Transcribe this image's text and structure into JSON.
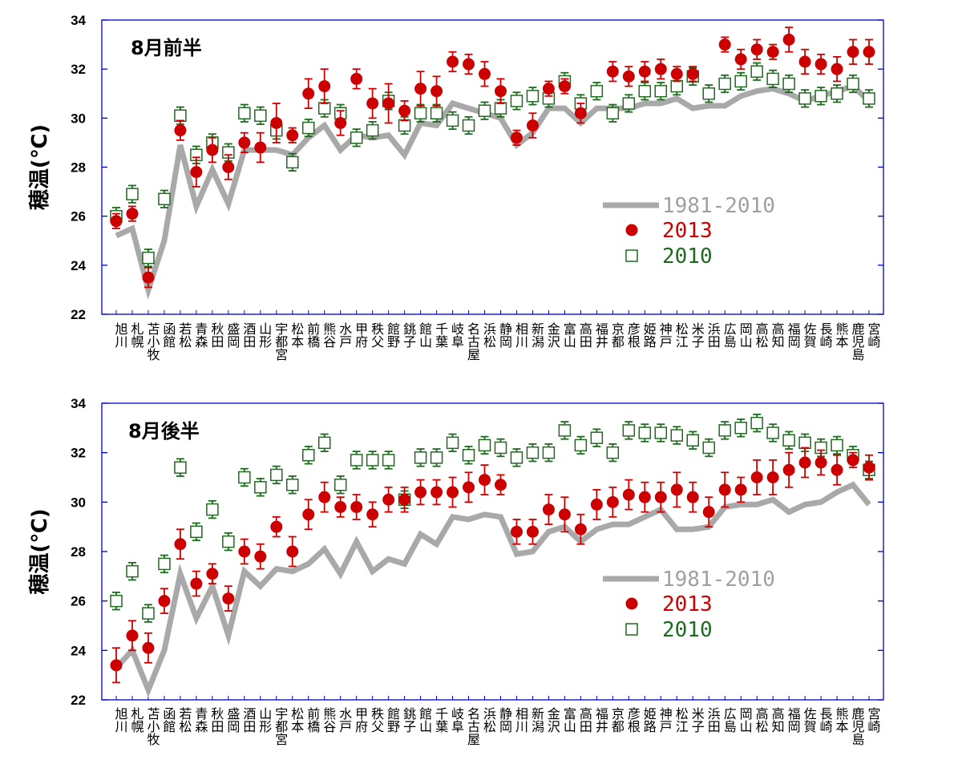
{
  "chart_data": [
    {
      "type": "line",
      "title": "8月前半",
      "ylabel": "穂温(℃)",
      "ylim": [
        22,
        34
      ],
      "yticks": [
        22,
        24,
        26,
        28,
        30,
        32,
        34
      ],
      "grid": false,
      "legend": "right-middle",
      "categories": [
        "旭川",
        "札幌",
        "苫小牧",
        "函館",
        "若松",
        "青森",
        "秋田",
        "盛岡",
        "酒田",
        "山形",
        "宇都宮",
        "松本",
        "前橋",
        "熊谷",
        "水戸",
        "甲府",
        "秩父",
        "館野",
        "銚子",
        "館山",
        "千葉",
        "岐阜",
        "名古屋",
        "浜松",
        "静岡",
        "相川",
        "新潟",
        "金沢",
        "富山",
        "高田",
        "福井",
        "京都",
        "彦根",
        "姫路",
        "神戸",
        "松江",
        "米子",
        "浜田",
        "広島",
        "岡山",
        "高松",
        "高知",
        "福岡",
        "佐賀",
        "長崎",
        "熊本",
        "鹿児島",
        "宮崎"
      ],
      "series": [
        {
          "name": "1981-2010",
          "color": "#a9a9a9",
          "style": "thick-line",
          "values": [
            25.2,
            25.5,
            23.0,
            25.0,
            28.9,
            26.4,
            27.9,
            26.5,
            28.7,
            28.7,
            28.7,
            28.5,
            29.2,
            29.7,
            28.7,
            29.3,
            29.2,
            29.3,
            28.5,
            29.8,
            29.7,
            30.6,
            30.4,
            30.2,
            30.0,
            28.9,
            29.4,
            30.4,
            30.4,
            29.8,
            30.4,
            30.4,
            30.4,
            30.6,
            30.6,
            30.8,
            30.4,
            30.5,
            30.5,
            30.9,
            31.1,
            31.2,
            31.0,
            30.7,
            30.9,
            31.1,
            31.3,
            30.7
          ]
        },
        {
          "name": "2013",
          "color": "#cc0000",
          "marker": "filled-circle",
          "values": [
            25.8,
            26.1,
            23.5,
            null,
            29.5,
            27.8,
            28.7,
            28.0,
            29.0,
            28.8,
            29.8,
            29.3,
            31.0,
            31.3,
            29.8,
            31.6,
            30.6,
            30.6,
            30.3,
            31.2,
            31.1,
            32.3,
            32.2,
            31.8,
            31.1,
            29.2,
            29.7,
            31.2,
            31.3,
            30.2,
            null,
            31.9,
            31.7,
            31.9,
            32.0,
            31.8,
            31.8,
            null,
            33.0,
            32.4,
            32.8,
            32.7,
            33.2,
            32.3,
            32.2,
            32.0,
            32.7,
            32.7
          ],
          "errors": [
            0.3,
            0.3,
            0.4,
            null,
            0.4,
            0.6,
            0.5,
            0.5,
            0.4,
            0.6,
            0.8,
            0.3,
            0.6,
            0.7,
            0.5,
            0.4,
            0.6,
            0.8,
            0.4,
            0.7,
            0.6,
            0.4,
            0.4,
            0.5,
            0.5,
            0.3,
            0.5,
            0.3,
            0.3,
            0.4,
            null,
            0.4,
            0.4,
            0.4,
            0.4,
            0.3,
            0.3,
            null,
            0.3,
            0.4,
            0.4,
            0.3,
            0.5,
            0.5,
            0.4,
            0.5,
            0.5,
            0.5
          ]
        },
        {
          "name": "2010",
          "color": "#1e6b1e",
          "marker": "open-square",
          "values": [
            26.0,
            26.9,
            24.3,
            26.7,
            30.1,
            28.5,
            29.0,
            28.6,
            30.2,
            30.1,
            29.5,
            28.2,
            29.6,
            30.4,
            30.2,
            29.2,
            29.5,
            30.7,
            29.7,
            30.2,
            30.2,
            29.9,
            29.7,
            30.3,
            30.4,
            30.7,
            30.9,
            30.8,
            31.5,
            30.6,
            31.1,
            30.2,
            30.6,
            31.1,
            31.1,
            31.3,
            31.7,
            31.0,
            31.4,
            31.5,
            31.9,
            31.6,
            31.4,
            30.8,
            30.9,
            31.0,
            31.4,
            30.8
          ]
        }
      ]
    },
    {
      "type": "line",
      "title": "8月後半",
      "ylabel": "穂温(℃)",
      "ylim": [
        22,
        34
      ],
      "yticks": [
        22,
        24,
        26,
        28,
        30,
        32,
        34
      ],
      "grid": false,
      "legend": "right-middle",
      "categories": [
        "旭川",
        "札幌",
        "苫小牧",
        "函館",
        "若松",
        "青森",
        "秋田",
        "盛岡",
        "酒田",
        "山形",
        "宇都宮",
        "松本",
        "前橋",
        "熊谷",
        "水戸",
        "甲府",
        "秩父",
        "館野",
        "銚子",
        "館山",
        "千葉",
        "岐阜",
        "名古屋",
        "浜松",
        "静岡",
        "相川",
        "新潟",
        "金沢",
        "富山",
        "高田",
        "福井",
        "京都",
        "彦根",
        "姫路",
        "神戸",
        "松江",
        "米子",
        "浜田",
        "広島",
        "岡山",
        "高松",
        "高知",
        "福岡",
        "佐賀",
        "長崎",
        "熊本",
        "鹿児島",
        "宮崎"
      ],
      "series": [
        {
          "name": "1981-2010",
          "color": "#a9a9a9",
          "style": "thick-line",
          "values": [
            23.3,
            24.0,
            22.4,
            24.0,
            27.1,
            25.3,
            26.6,
            24.6,
            27.2,
            26.6,
            27.3,
            27.2,
            27.5,
            28.1,
            27.1,
            28.4,
            27.2,
            27.7,
            27.5,
            28.7,
            28.3,
            29.4,
            29.3,
            29.5,
            29.4,
            27.9,
            28.0,
            28.8,
            29.0,
            28.4,
            28.9,
            29.1,
            29.1,
            29.4,
            29.7,
            28.9,
            28.9,
            29.0,
            29.8,
            29.9,
            29.9,
            30.1,
            29.6,
            29.9,
            30.0,
            30.4,
            30.7,
            29.9
          ]
        },
        {
          "name": "2013",
          "color": "#cc0000",
          "marker": "filled-circle",
          "values": [
            23.4,
            24.6,
            24.1,
            26.0,
            28.3,
            26.7,
            27.1,
            26.1,
            28.0,
            27.8,
            29.0,
            28.0,
            29.5,
            30.2,
            29.8,
            29.8,
            29.5,
            30.1,
            30.1,
            30.4,
            30.4,
            30.4,
            30.6,
            30.9,
            30.7,
            28.8,
            28.8,
            29.7,
            29.5,
            28.9,
            29.9,
            30.0,
            30.3,
            30.2,
            30.2,
            30.5,
            30.2,
            29.6,
            30.5,
            30.5,
            31.0,
            31.0,
            31.3,
            31.6,
            31.6,
            31.3,
            31.7,
            31.4
          ],
          "errors": [
            0.7,
            0.6,
            0.6,
            0.5,
            0.6,
            0.5,
            0.4,
            0.5,
            0.5,
            0.5,
            0.4,
            0.6,
            0.6,
            0.6,
            0.4,
            0.5,
            0.5,
            0.5,
            0.5,
            0.5,
            0.5,
            0.6,
            0.6,
            0.6,
            0.4,
            0.5,
            0.5,
            0.6,
            0.7,
            0.6,
            0.6,
            0.6,
            0.6,
            0.6,
            0.6,
            0.7,
            0.6,
            0.6,
            0.7,
            0.5,
            0.7,
            0.7,
            0.7,
            0.6,
            0.5,
            0.6,
            0.3,
            0.5
          ]
        },
        {
          "name": "2010",
          "color": "#1e6b1e",
          "marker": "open-square",
          "values": [
            26.0,
            27.2,
            25.5,
            27.5,
            31.4,
            28.8,
            29.7,
            28.4,
            31.0,
            30.6,
            31.1,
            30.7,
            31.9,
            32.4,
            30.7,
            31.7,
            31.7,
            31.7,
            30.1,
            31.8,
            31.8,
            32.4,
            31.9,
            32.3,
            32.2,
            31.8,
            32.0,
            32.0,
            32.9,
            32.3,
            32.6,
            32.0,
            32.9,
            32.8,
            32.8,
            32.7,
            32.5,
            32.2,
            32.9,
            33.0,
            33.2,
            32.8,
            32.5,
            32.4,
            32.2,
            32.3,
            31.9,
            31.3
          ]
        }
      ]
    }
  ]
}
